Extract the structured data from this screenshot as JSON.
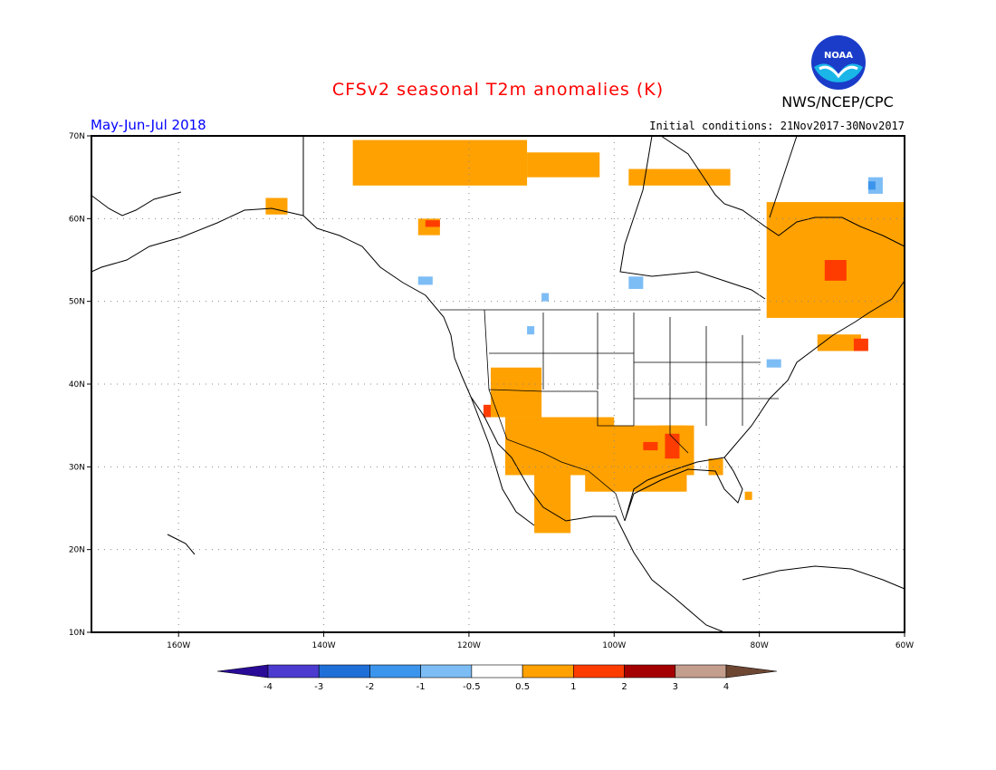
{
  "title": "CFSv2 seasonal T2m anomalies (K)",
  "agency": "NWS/NCEP/CPC",
  "logo_text": "NOAA",
  "season": "May-Jun-Jul 2018",
  "initial_conditions": "Initial conditions: 21Nov2017-30Nov2017",
  "map": {
    "lon_range": [
      -172,
      -60
    ],
    "lat_range": [
      10,
      70
    ],
    "lon_ticks": [
      {
        "lon": -160,
        "label": "160W"
      },
      {
        "lon": -140,
        "label": "140W"
      },
      {
        "lon": -120,
        "label": "120W"
      },
      {
        "lon": -100,
        "label": "100W"
      },
      {
        "lon": -80,
        "label": "80W"
      },
      {
        "lon": -60,
        "label": "60W"
      }
    ],
    "lat_ticks": [
      {
        "lat": 70,
        "label": "70N"
      },
      {
        "lat": 60,
        "label": "60N"
      },
      {
        "lat": 50,
        "label": "50N"
      },
      {
        "lat": 40,
        "label": "40N"
      },
      {
        "lat": 30,
        "label": "30N"
      },
      {
        "lat": 20,
        "label": "20N"
      },
      {
        "lat": 10,
        "label": "10N"
      }
    ],
    "grid_lons": [
      -160,
      -140,
      -120,
      -100,
      -80
    ],
    "grid_lats": [
      20,
      30,
      40,
      50,
      60
    ]
  },
  "colorbar": {
    "labels": [
      "-4",
      "-3",
      "-2",
      "-1",
      "-0.5",
      "0.5",
      "1",
      "2",
      "3",
      "4"
    ],
    "colors": [
      "#2a0b98",
      "#4b3bcf",
      "#1f6fd8",
      "#3b95ec",
      "#7dbdf5",
      "#ffffff",
      "#ffa100",
      "#ff3c00",
      "#a50000",
      "#c49e8c",
      "#6e4733"
    ]
  },
  "anomaly_regions": [
    {
      "level": "0.5 to 1",
      "color": "#ffa100",
      "cells": [
        [
          -136,
          -112,
          64,
          69.5
        ],
        [
          -112,
          -102,
          65,
          68
        ],
        [
          -148,
          -145,
          60.5,
          62.5
        ],
        [
          -127,
          -124,
          58,
          60
        ],
        [
          -98,
          -84,
          64,
          66
        ],
        [
          -79,
          -60,
          48,
          62
        ],
        [
          -117,
          -110,
          36,
          42
        ],
        [
          -115,
          -100,
          29,
          36
        ],
        [
          -104,
          -90,
          27,
          35
        ],
        [
          -111,
          -106,
          22,
          30
        ],
        [
          -94,
          -89,
          29,
          35
        ],
        [
          -72,
          -66,
          44,
          46
        ],
        [
          -87,
          -85,
          29,
          31
        ],
        [
          -82,
          -81,
          26,
          27
        ]
      ]
    },
    {
      "level": "1 to 2",
      "color": "#ff3c00",
      "cells": [
        [
          -126,
          -124,
          59,
          59.8
        ],
        [
          -71,
          -68,
          52.5,
          55
        ],
        [
          -118,
          -117,
          36,
          37.5
        ],
        [
          -93,
          -91,
          31,
          34
        ],
        [
          -96,
          -94,
          32,
          33
        ],
        [
          -67,
          -65,
          44,
          45.5
        ]
      ]
    },
    {
      "level": "-1 to -0.5",
      "color": "#7dbdf5",
      "cells": [
        [
          -127,
          -125,
          52,
          53
        ],
        [
          -110,
          -109,
          50,
          51
        ],
        [
          -112,
          -111,
          46,
          47
        ],
        [
          -98,
          -96,
          51.5,
          53
        ],
        [
          -79,
          -77,
          42,
          43
        ],
        [
          -65,
          -63,
          63,
          65
        ]
      ]
    },
    {
      "level": "-2 to -1",
      "color": "#3b95ec",
      "cells": [
        [
          -65,
          -64,
          63.5,
          64.5
        ]
      ]
    }
  ]
}
